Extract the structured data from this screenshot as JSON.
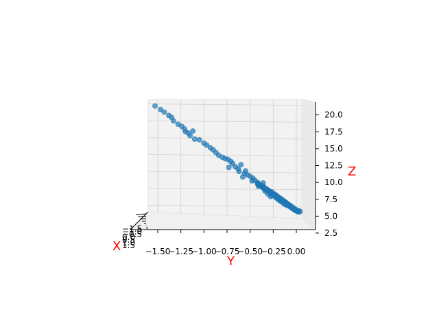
{
  "chart_data": {
    "type": "scatter",
    "projection": "3d",
    "title": "",
    "xlabel": "X",
    "ylabel": "Y",
    "zlabel": "Z",
    "label_color": "#ff0000",
    "marker_color": "#1f77b4",
    "grid": true,
    "y_ticks": [
      "−1.50",
      "−1.25",
      "−1.00",
      "−0.75",
      "−0.50",
      "−0.25",
      "0.00"
    ],
    "y_tick_values": [
      -1.5,
      -1.25,
      -1.0,
      -0.75,
      -0.5,
      -0.25,
      0.0
    ],
    "z_ticks": [
      "2.5",
      "5.0",
      "7.5",
      "10.0",
      "12.5",
      "15.0",
      "17.5",
      "20.0"
    ],
    "z_tick_values": [
      2.5,
      5.0,
      7.5,
      10.0,
      12.5,
      15.0,
      17.5,
      20.0
    ],
    "x_ticks": [
      "−1.5",
      "−1.0",
      "−0.5",
      "0.0",
      "0.5",
      "1.0",
      "1.5"
    ],
    "ylim": [
      -1.58,
      0.08
    ],
    "zlim": [
      2.0,
      21.5
    ],
    "points": [
      [
        -1.53,
        20.3
      ],
      [
        -1.47,
        19.8
      ],
      [
        -1.43,
        19.4
      ],
      [
        -1.38,
        18.9
      ],
      [
        -1.35,
        18.6
      ],
      [
        -1.33,
        18.1
      ],
      [
        -1.28,
        17.6
      ],
      [
        -1.24,
        17.3
      ],
      [
        -1.21,
        16.9
      ],
      [
        -1.2,
        16.5
      ],
      [
        -1.17,
        16.3
      ],
      [
        -1.15,
        15.9
      ],
      [
        -1.12,
        16.6
      ],
      [
        -1.1,
        15.4
      ],
      [
        -1.05,
        15.3
      ],
      [
        -1.0,
        14.8
      ],
      [
        -0.97,
        14.5
      ],
      [
        -0.93,
        14.1
      ],
      [
        -0.9,
        13.8
      ],
      [
        -0.87,
        13.4
      ],
      [
        -0.84,
        13.0
      ],
      [
        -0.8,
        12.7
      ],
      [
        -0.77,
        12.5
      ],
      [
        -0.74,
        12.4
      ],
      [
        -0.71,
        12.1
      ],
      [
        -0.69,
        11.8
      ],
      [
        -0.73,
        11.2
      ],
      [
        -0.66,
        11.3
      ],
      [
        -0.63,
        11.0
      ],
      [
        -0.62,
        10.6
      ],
      [
        -0.6,
        11.6
      ],
      [
        -0.56,
        10.3
      ],
      [
        -0.53,
        10.1
      ],
      [
        -0.5,
        9.9
      ],
      [
        -0.47,
        9.6
      ],
      [
        -0.45,
        9.3
      ],
      [
        -0.42,
        9.0
      ],
      [
        -0.4,
        8.7
      ],
      [
        -0.37,
        8.5
      ],
      [
        -0.35,
        8.3
      ],
      [
        -0.32,
        8.0
      ],
      [
        -0.3,
        7.8
      ],
      [
        -0.27,
        7.6
      ],
      [
        -0.25,
        7.4
      ],
      [
        -0.23,
        7.2
      ],
      [
        -0.21,
        7.0
      ],
      [
        -0.19,
        6.8
      ],
      [
        -0.17,
        6.6
      ],
      [
        -0.15,
        6.4
      ],
      [
        -0.13,
        6.2
      ],
      [
        -0.11,
        6.0
      ],
      [
        -0.09,
        5.8
      ],
      [
        -0.07,
        5.6
      ],
      [
        -0.05,
        5.4
      ],
      [
        -0.03,
        5.2
      ],
      [
        -0.01,
        5.0
      ],
      [
        0.02,
        4.8
      ],
      [
        0.04,
        4.7
      ],
      [
        -0.55,
        10.7
      ],
      [
        -0.48,
        9.2
      ],
      [
        -0.41,
        8.4
      ],
      [
        -0.36,
        8.9
      ],
      [
        -0.31,
        7.3
      ],
      [
        -0.26,
        7.0
      ],
      [
        -0.2,
        6.5
      ],
      [
        -0.16,
        6.1
      ],
      [
        -0.12,
        5.7
      ],
      [
        -0.08,
        5.5
      ],
      [
        -0.04,
        5.1
      ],
      [
        -0.02,
        4.9
      ],
      [
        -0.58,
        9.8
      ],
      [
        -0.34,
        7.7
      ],
      [
        -0.28,
        6.9
      ],
      [
        -0.22,
        6.7
      ],
      [
        -0.18,
        6.3
      ],
      [
        -0.14,
        5.9
      ],
      [
        -0.1,
        5.6
      ],
      [
        -0.06,
        5.3
      ],
      [
        0.0,
        4.9
      ],
      [
        0.03,
        4.6
      ]
    ]
  }
}
